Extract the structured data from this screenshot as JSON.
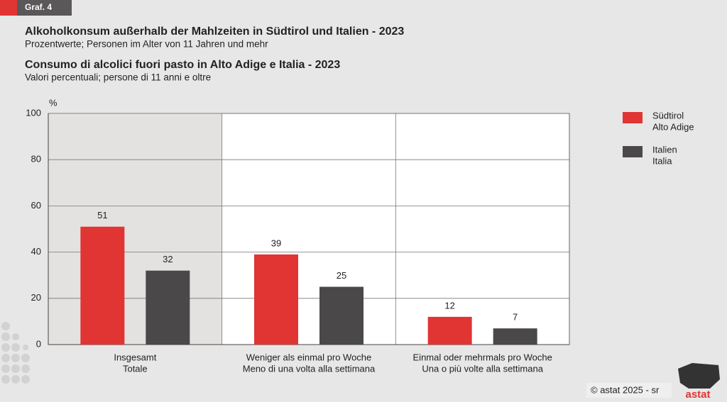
{
  "header": {
    "tag": "Graf. 4"
  },
  "chart_data": {
    "type": "bar",
    "title": "Alkoholkonsum außerhalb der Mahlzeiten in Südtirol und Italien - 2023",
    "subtitle": "Prozentwerte; Personen im Alter von 11 Jahren und mehr",
    "title_2": "Consumo di alcolici fuori pasto in Alto Adige e Italia - 2023",
    "subtitle_2": "Valori percentuali; persone di 11 anni e oltre",
    "y_unit": "%",
    "categories": [
      [
        "Insgesamt",
        "Totale"
      ],
      [
        "Weniger als einmal pro Woche",
        "Meno di una volta alla settimana"
      ],
      [
        "Einmal oder mehrmals pro Woche",
        "Una o più volte alla settimana"
      ]
    ],
    "series": [
      {
        "name": [
          "Südtirol",
          "Alto Adige"
        ],
        "color": "#e03533",
        "values": [
          51,
          39,
          12
        ]
      },
      {
        "name": [
          "Italien",
          "Italia"
        ],
        "color": "#4a4848",
        "values": [
          32,
          25,
          7
        ]
      }
    ],
    "ylim": [
      0,
      100
    ],
    "yticks": [
      0,
      20,
      40,
      60,
      80,
      100
    ],
    "grid": true
  },
  "footer": {
    "credit": "© astat 2025 - sr",
    "logo": "astat"
  }
}
